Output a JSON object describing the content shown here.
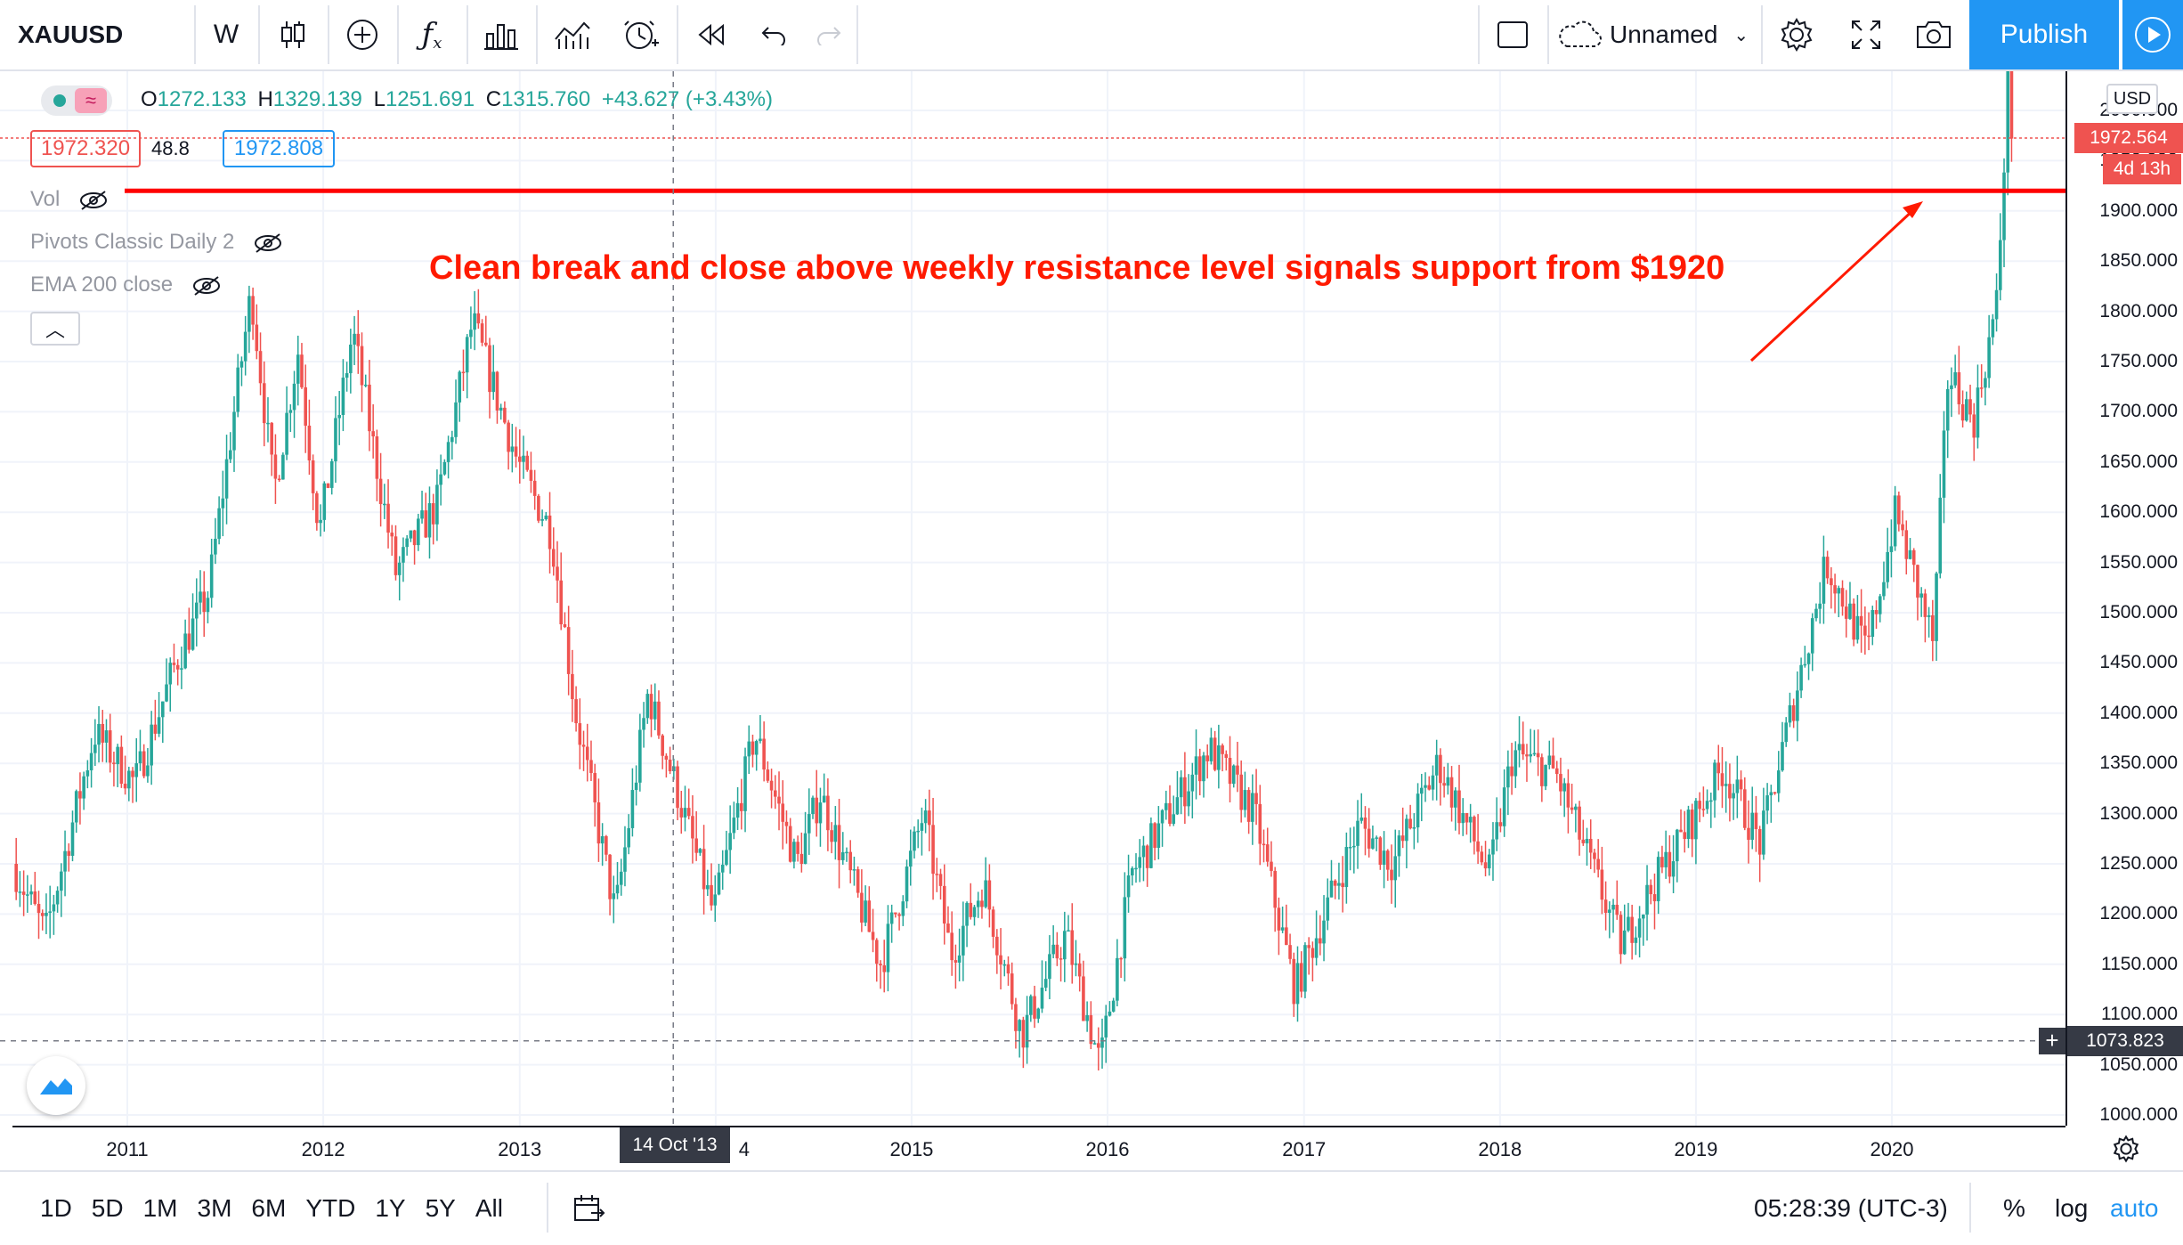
{
  "header": {
    "symbol": "XAUUSD",
    "interval": "W",
    "layout_name": "Unnamed",
    "publish_label": "Publish",
    "icons": [
      "candles-icon",
      "add-icon",
      "fx-icon",
      "bar-chart-icon",
      "compare-icon",
      "alert-icon",
      "replay-icon",
      "undo-icon",
      "redo-icon",
      "layout-icon",
      "cloud-icon",
      "gear-icon",
      "fullscreen-icon",
      "camera-icon",
      "play-icon"
    ]
  },
  "legend": {
    "open_label": "O",
    "open": "1272.133",
    "high_label": "H",
    "high": "1329.139",
    "low_label": "L",
    "low": "1251.691",
    "close_label": "C",
    "close": "1315.760",
    "change": "+43.627 (+3.43%)",
    "sell_price": "1972.320",
    "spread": "48.8",
    "buy_price": "1972.808",
    "indicators": [
      "Vol",
      "Pivots Classic Daily 2",
      "EMA 200 close"
    ]
  },
  "annotation": {
    "text": "Clean break and close above weekly resistance level signals support from $1920",
    "color": "#ff1a00"
  },
  "price_scale": {
    "currency": "USD",
    "ticks": [
      "2000.000",
      "1950.000",
      "1900.000",
      "1850.000",
      "1800.000",
      "1750.000",
      "1700.000",
      "1650.000",
      "1600.000",
      "1550.000",
      "1500.000",
      "1450.000",
      "1400.000",
      "1350.000",
      "1300.000",
      "1250.000",
      "1200.000",
      "1150.000",
      "1100.000",
      "1050.000",
      "1000.000"
    ],
    "last_price": "1972.564",
    "countdown": "4d 13h",
    "crosshair_price": "1073.823",
    "resistance": 1920
  },
  "time_scale": {
    "ticks": [
      "2011",
      "2012",
      "2013",
      "4",
      "2015",
      "2016",
      "2017",
      "2018",
      "2019",
      "2020"
    ],
    "crosshair_date": "14 Oct '13"
  },
  "bottom_bar": {
    "ranges": [
      "1D",
      "5D",
      "1M",
      "3M",
      "6M",
      "YTD",
      "1Y",
      "5Y",
      "All"
    ],
    "clock": "05:28:39 (UTC-3)",
    "percent": "%",
    "log": "log",
    "auto": "auto"
  },
  "colors": {
    "up": "#26a69a",
    "down": "#ef5350",
    "accent": "#2196f3",
    "resistance": "#ff0000"
  },
  "chart_data": {
    "type": "candlestick",
    "interval": "weekly",
    "ylim": [
      1000,
      2000
    ],
    "xlim": [
      "2010-06",
      "2020-08"
    ],
    "anchors": [
      [
        "2010-06-01",
        1250
      ],
      [
        "2010-08-01",
        1180
      ],
      [
        "2010-11-01",
        1380
      ],
      [
        "2011-01-15",
        1330
      ],
      [
        "2011-04-01",
        1450
      ],
      [
        "2011-06-01",
        1520
      ],
      [
        "2011-08-20",
        1820
      ],
      [
        "2011-10-01",
        1620
      ],
      [
        "2011-11-15",
        1760
      ],
      [
        "2011-12-25",
        1580
      ],
      [
        "2012-02-25",
        1780
      ],
      [
        "2012-05-15",
        1540
      ],
      [
        "2012-08-01",
        1610
      ],
      [
        "2012-10-05",
        1790
      ],
      [
        "2012-12-28",
        1650
      ],
      [
        "2013-03-01",
        1580
      ],
      [
        "2013-04-15",
        1400
      ],
      [
        "2013-06-28",
        1200
      ],
      [
        "2013-08-28",
        1420
      ],
      [
        "2013-12-28",
        1200
      ],
      [
        "2014-03-15",
        1380
      ],
      [
        "2014-06-01",
        1250
      ],
      [
        "2014-07-15",
        1320
      ],
      [
        "2014-11-05",
        1150
      ],
      [
        "2015-01-23",
        1300
      ],
      [
        "2015-03-15",
        1160
      ],
      [
        "2015-05-15",
        1230
      ],
      [
        "2015-07-25",
        1080
      ],
      [
        "2015-10-15",
        1180
      ],
      [
        "2015-12-18",
        1050
      ],
      [
        "2016-02-15",
        1240
      ],
      [
        "2016-07-08",
        1365
      ],
      [
        "2016-10-01",
        1300
      ],
      [
        "2016-12-15",
        1125
      ],
      [
        "2017-04-15",
        1290
      ],
      [
        "2017-06-15",
        1250
      ],
      [
        "2017-09-08",
        1350
      ],
      [
        "2017-12-12",
        1240
      ],
      [
        "2018-01-25",
        1360
      ],
      [
        "2018-04-15",
        1340
      ],
      [
        "2018-08-15",
        1170
      ],
      [
        "2018-10-15",
        1230
      ],
      [
        "2019-02-20",
        1345
      ],
      [
        "2019-05-01",
        1270
      ],
      [
        "2019-09-01",
        1550
      ],
      [
        "2019-11-15",
        1460
      ],
      [
        "2020-01-08",
        1600
      ],
      [
        "2020-03-18",
        1470
      ],
      [
        "2020-04-15",
        1740
      ],
      [
        "2020-06-01",
        1690
      ],
      [
        "2020-07-15",
        1810
      ],
      [
        "2020-08-08",
        2070
      ],
      [
        "2020-08-15",
        1972
      ]
    ],
    "resistance_level": 1920
  }
}
